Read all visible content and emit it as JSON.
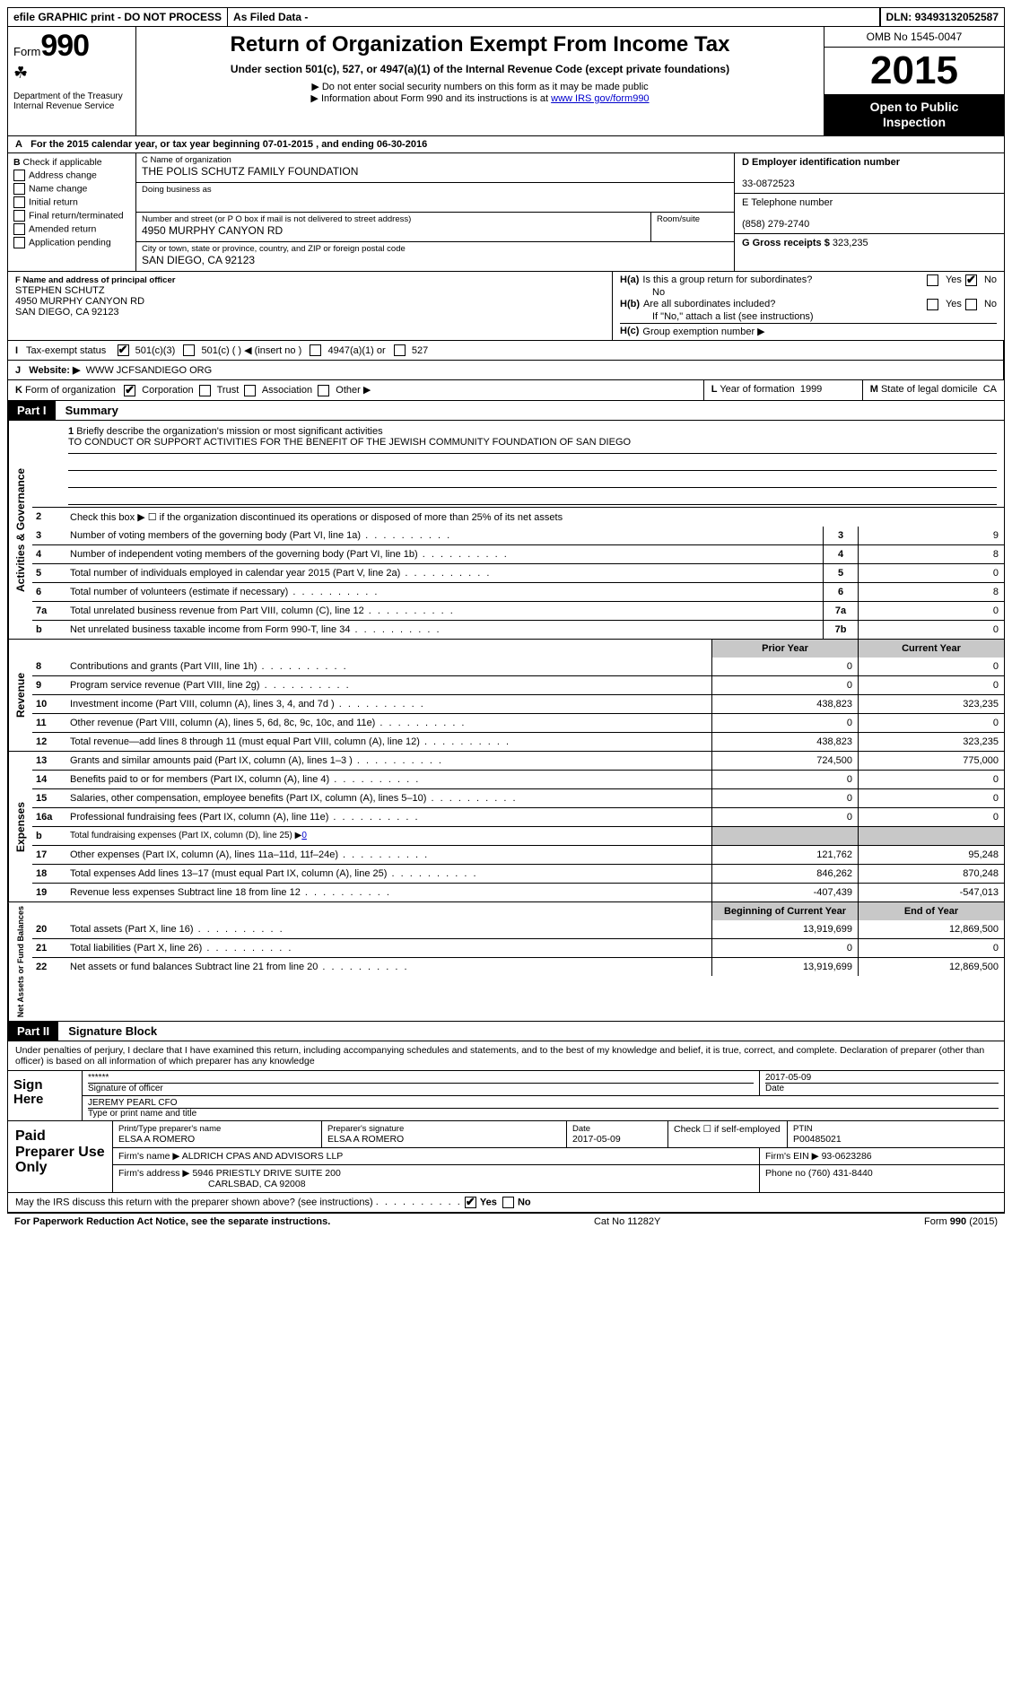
{
  "topbar": {
    "efile": "efile GRAPHIC print - DO NOT PROCESS",
    "asfiled": "As Filed Data -",
    "dln_label": "DLN:",
    "dln": "93493132052587"
  },
  "header": {
    "form_word": "Form",
    "form_num": "990",
    "dept1": "Department of the Treasury",
    "dept2": "Internal Revenue Service",
    "title": "Return of Organization Exempt From Income Tax",
    "sub1": "Under section 501(c), 527, or 4947(a)(1) of the Internal Revenue Code (except private foundations)",
    "sub2": "▶ Do not enter social security numbers on this form as it may be made public",
    "sub3_pre": "▶ Information about Form 990 and its instructions is at ",
    "sub3_link": "www IRS gov/form990",
    "omb": "OMB No 1545-0047",
    "year": "2015",
    "open1": "Open to Public",
    "open2": "Inspection"
  },
  "rowA": {
    "label": "A",
    "text_pre": "For the 2015 calendar year, or tax year beginning ",
    "begin": "07-01-2015",
    "mid": " , and ending ",
    "end": "06-30-2016"
  },
  "boxB": {
    "label": "B",
    "title": "Check if applicable",
    "items": [
      "Address change",
      "Name change",
      "Initial return",
      "Final return/terminated",
      "Amended return",
      "Application pending"
    ]
  },
  "boxC": {
    "label_name": "C Name of organization",
    "name": "THE POLIS SCHUTZ FAMILY FOUNDATION",
    "dba_label": "Doing business as",
    "dba": "",
    "addr_label": "Number and street (or P O box if mail is not delivered to street address)",
    "room_label": "Room/suite",
    "addr": "4950 MURPHY CANYON RD",
    "city_label": "City or town, state or province, country, and ZIP or foreign postal code",
    "city": "SAN DIEGO, CA 92123"
  },
  "boxD": {
    "label": "D Employer identification number",
    "val": "33-0872523"
  },
  "boxE": {
    "label": "E Telephone number",
    "val": "(858) 279-2740"
  },
  "boxG": {
    "label": "G Gross receipts $",
    "val": "323,235"
  },
  "boxF": {
    "label": "F  Name and address of principal officer",
    "l1": "STEPHEN SCHUTZ",
    "l2": "4950 MURPHY CANYON RD",
    "l3": "SAN DIEGO, CA  92123"
  },
  "boxH": {
    "a_label": "H(a)",
    "a_text": "Is this a group return for subordinates?",
    "a_answer": "No",
    "yes": "Yes",
    "no": "No",
    "b_label": "H(b)",
    "b_text": "Are all subordinates included?",
    "b_note": "If \"No,\" attach a list (see instructions)",
    "c_label": "H(c)",
    "c_text": "Group exemption number ▶"
  },
  "rowI": {
    "label": "I",
    "title": "Tax-exempt status",
    "opts": [
      "501(c)(3)",
      "501(c) (  ) ◀ (insert no )",
      "4947(a)(1) or",
      "527"
    ],
    "checked_idx": 0
  },
  "rowJ": {
    "label": "J",
    "title": "Website: ▶",
    "val": "WWW JCFSANDIEGO ORG"
  },
  "rowK": {
    "label": "K",
    "title": "Form of organization",
    "opts": [
      "Corporation",
      "Trust",
      "Association",
      "Other ▶"
    ],
    "checked_idx": 0,
    "L_label": "L",
    "L_text": "Year of formation",
    "L_val": "1999",
    "M_label": "M",
    "M_text": "State of legal domicile",
    "M_val": "CA"
  },
  "part1": {
    "tag": "Part I",
    "title": "Summary"
  },
  "governance": {
    "vlabel": "Activities & Governance",
    "l1_label": "1",
    "l1_text": "Briefly describe the organization's mission or most significant activities",
    "mission": "TO CONDUCT OR SUPPORT ACTIVITIES FOR THE BENEFIT OF THE JEWISH COMMUNITY FOUNDATION OF SAN DIEGO",
    "l2_label": "2",
    "l2_text": "Check this box ▶ ☐ if the organization discontinued its operations or disposed of more than 25% of its net assets",
    "rows": [
      {
        "n": "3",
        "d": "Number of voting members of the governing body (Part VI, line 1a)",
        "box": "3",
        "v": "9"
      },
      {
        "n": "4",
        "d": "Number of independent voting members of the governing body (Part VI, line 1b)",
        "box": "4",
        "v": "8"
      },
      {
        "n": "5",
        "d": "Total number of individuals employed in calendar year 2015 (Part V, line 2a)",
        "box": "5",
        "v": "0"
      },
      {
        "n": "6",
        "d": "Total number of volunteers (estimate if necessary)",
        "box": "6",
        "v": "8"
      },
      {
        "n": "7a",
        "d": "Total unrelated business revenue from Part VIII, column (C), line 12",
        "box": "7a",
        "v": "0"
      },
      {
        "n": "b",
        "d": "Net unrelated business taxable income from Form 990-T, line 34",
        "box": "7b",
        "v": "0"
      }
    ]
  },
  "revenue": {
    "vlabel": "Revenue",
    "hdr_prior": "Prior Year",
    "hdr_curr": "Current Year",
    "rows": [
      {
        "n": "8",
        "d": "Contributions and grants (Part VIII, line 1h)",
        "p": "0",
        "c": "0"
      },
      {
        "n": "9",
        "d": "Program service revenue (Part VIII, line 2g)",
        "p": "0",
        "c": "0"
      },
      {
        "n": "10",
        "d": "Investment income (Part VIII, column (A), lines 3, 4, and 7d )",
        "p": "438,823",
        "c": "323,235"
      },
      {
        "n": "11",
        "d": "Other revenue (Part VIII, column (A), lines 5, 6d, 8c, 9c, 10c, and 11e)",
        "p": "0",
        "c": "0"
      },
      {
        "n": "12",
        "d": "Total revenue—add lines 8 through 11 (must equal Part VIII, column (A), line 12)",
        "p": "438,823",
        "c": "323,235"
      }
    ]
  },
  "expenses": {
    "vlabel": "Expenses",
    "rows": [
      {
        "n": "13",
        "d": "Grants and similar amounts paid (Part IX, column (A), lines 1–3 )",
        "p": "724,500",
        "c": "775,000"
      },
      {
        "n": "14",
        "d": "Benefits paid to or for members (Part IX, column (A), line 4)",
        "p": "0",
        "c": "0"
      },
      {
        "n": "15",
        "d": "Salaries, other compensation, employee benefits (Part IX, column (A), lines 5–10)",
        "p": "0",
        "c": "0"
      },
      {
        "n": "16a",
        "d": "Professional fundraising fees (Part IX, column (A), line 11e)",
        "p": "0",
        "c": "0"
      },
      {
        "n": "b",
        "d": "Total fundraising expenses (Part IX, column (D), line 25) ▶",
        "p": "",
        "c": "",
        "fund": "0",
        "shaded": true
      },
      {
        "n": "17",
        "d": "Other expenses (Part IX, column (A), lines 11a–11d, 11f–24e)",
        "p": "121,762",
        "c": "95,248"
      },
      {
        "n": "18",
        "d": "Total expenses Add lines 13–17 (must equal Part IX, column (A), line 25)",
        "p": "846,262",
        "c": "870,248"
      },
      {
        "n": "19",
        "d": "Revenue less expenses Subtract line 18 from line 12",
        "p": "-407,439",
        "c": "-547,013"
      }
    ]
  },
  "netassets": {
    "vlabel": "Net Assets or Fund Balances",
    "hdr_begin": "Beginning of Current Year",
    "hdr_end": "End of Year",
    "rows": [
      {
        "n": "20",
        "d": "Total assets (Part X, line 16)",
        "p": "13,919,699",
        "c": "12,869,500"
      },
      {
        "n": "21",
        "d": "Total liabilities (Part X, line 26)",
        "p": "0",
        "c": "0"
      },
      {
        "n": "22",
        "d": "Net assets or fund balances Subtract line 21 from line 20",
        "p": "13,919,699",
        "c": "12,869,500"
      }
    ]
  },
  "part2": {
    "tag": "Part II",
    "title": "Signature Block"
  },
  "penalty": "Under penalties of perjury, I declare that I have examined this return, including accompanying schedules and statements, and to the best of my knowledge and belief, it is true, correct, and complete. Declaration of preparer (other than officer) is based on all information of which preparer has any knowledge",
  "sign": {
    "label": "Sign Here",
    "stars": "******",
    "sig_label": "Signature of officer",
    "date_label": "Date",
    "date": "2017-05-09",
    "name": "JEREMY PEARL CFO",
    "name_label": "Type or print name and title"
  },
  "paid": {
    "label": "Paid Preparer Use Only",
    "r1": {
      "c1l": "Print/Type preparer's name",
      "c1": "ELSA A ROMERO",
      "c2l": "Preparer's signature",
      "c2": "ELSA A ROMERO",
      "c3l": "Date",
      "c3": "2017-05-09",
      "c4l": "Check ☐ if self-employed",
      "c5l": "PTIN",
      "c5": "P00485021"
    },
    "r2": {
      "c1l": "Firm's name    ▶",
      "c1": "ALDRICH CPAS AND ADVISORS LLP",
      "c2l": "Firm's EIN ▶",
      "c2": "93-0623286"
    },
    "r3": {
      "c1l": "Firm's address ▶",
      "c1a": "5946 PRIESTLY DRIVE SUITE 200",
      "c1b": "CARLSBAD, CA  92008",
      "c2l": "Phone no",
      "c2": "(760) 431-8440"
    }
  },
  "discuss": {
    "q": "May the IRS discuss this return with the preparer shown above? (see instructions)",
    "yes": "Yes",
    "no": "No"
  },
  "footer": {
    "left": "For Paperwork Reduction Act Notice, see the separate instructions.",
    "mid": "Cat No 11282Y",
    "right": "Form 990 (2015)"
  },
  "colors": {
    "black": "#000000",
    "white": "#ffffff",
    "shade": "#c8c8c8",
    "link": "#0000cc"
  }
}
